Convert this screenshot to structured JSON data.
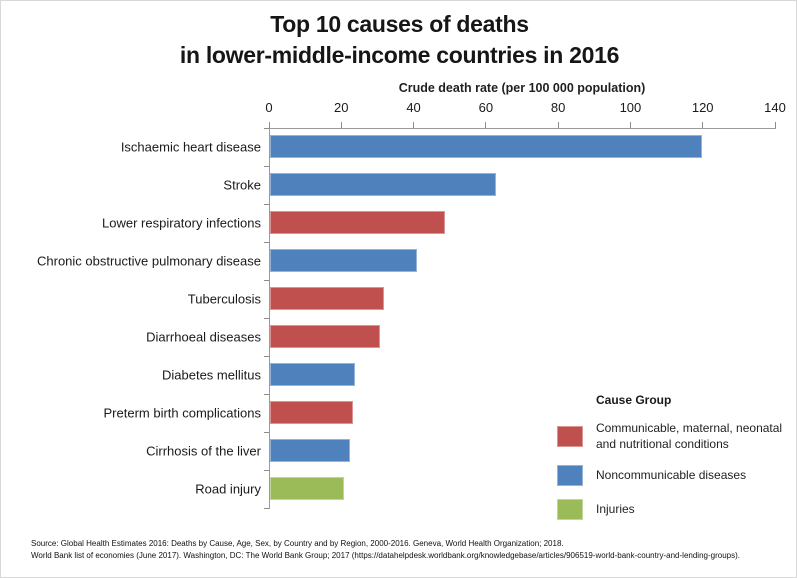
{
  "title": {
    "line1": "Top 10 causes of deaths",
    "line2": "in lower-middle-income countries in 2016"
  },
  "chart_data": {
    "type": "bar",
    "orientation": "horizontal",
    "title": "Top 10 causes of deaths in lower-middle-income countries in 2016",
    "xlabel": "Crude death rate (per 100 000 population)",
    "ylabel": "",
    "xlim": [
      0,
      140
    ],
    "xticks": [
      0,
      20,
      40,
      60,
      80,
      100,
      120,
      140
    ],
    "grid": false,
    "bars": [
      {
        "category": "Ischaemic heart disease",
        "value": 119,
        "group": "Noncommunicable diseases"
      },
      {
        "category": "Stroke",
        "value": 62,
        "group": "Noncommunicable diseases"
      },
      {
        "category": "Lower respiratory infections",
        "value": 48,
        "group": "Communicable, maternal, neonatal and nutritional conditions"
      },
      {
        "category": "Chronic obstructive pulmonary disease",
        "value": 40,
        "group": "Noncommunicable diseases"
      },
      {
        "category": "Tuberculosis",
        "value": 31,
        "group": "Communicable, maternal, neonatal and nutritional conditions"
      },
      {
        "category": "Diarrhoeal diseases",
        "value": 30,
        "group": "Communicable, maternal, neonatal and nutritional conditions"
      },
      {
        "category": "Diabetes mellitus",
        "value": 23,
        "group": "Noncommunicable diseases"
      },
      {
        "category": "Preterm birth complications",
        "value": 22.5,
        "group": "Communicable, maternal, neonatal and nutritional conditions"
      },
      {
        "category": "Cirrhosis of the liver",
        "value": 21.5,
        "group": "Noncommunicable diseases"
      },
      {
        "category": "Road injury",
        "value": 20,
        "group": "Injuries"
      }
    ],
    "group_colors": {
      "Communicable, maternal, neonatal and nutritional conditions": "#C0504D",
      "Noncommunicable diseases": "#4F81BD",
      "Injuries": "#9BBB59"
    },
    "legend": {
      "title": "Cause Group",
      "position": "bottom-right",
      "entries": [
        {
          "label": "Communicable, maternal, neonatal and nutritional conditions",
          "color": "#C0504D"
        },
        {
          "label": "Noncommunicable diseases",
          "color": "#4F81BD"
        },
        {
          "label": "Injuries",
          "color": "#9BBB59"
        }
      ]
    }
  },
  "footer": {
    "line1": "Source: Global Health Estimates 2016: Deaths by Cause, Age, Sex, by Country and by Region, 2000-2016. Geneva, World Health Organization; 2018.",
    "line2": "World Bank list of economies (June 2017). Washington, DC: The World Bank Group; 2017 (https://datahelpdesk.worldbank.org/knowledgebase/articles/906519-world-bank-country-and-lending-groups)."
  }
}
